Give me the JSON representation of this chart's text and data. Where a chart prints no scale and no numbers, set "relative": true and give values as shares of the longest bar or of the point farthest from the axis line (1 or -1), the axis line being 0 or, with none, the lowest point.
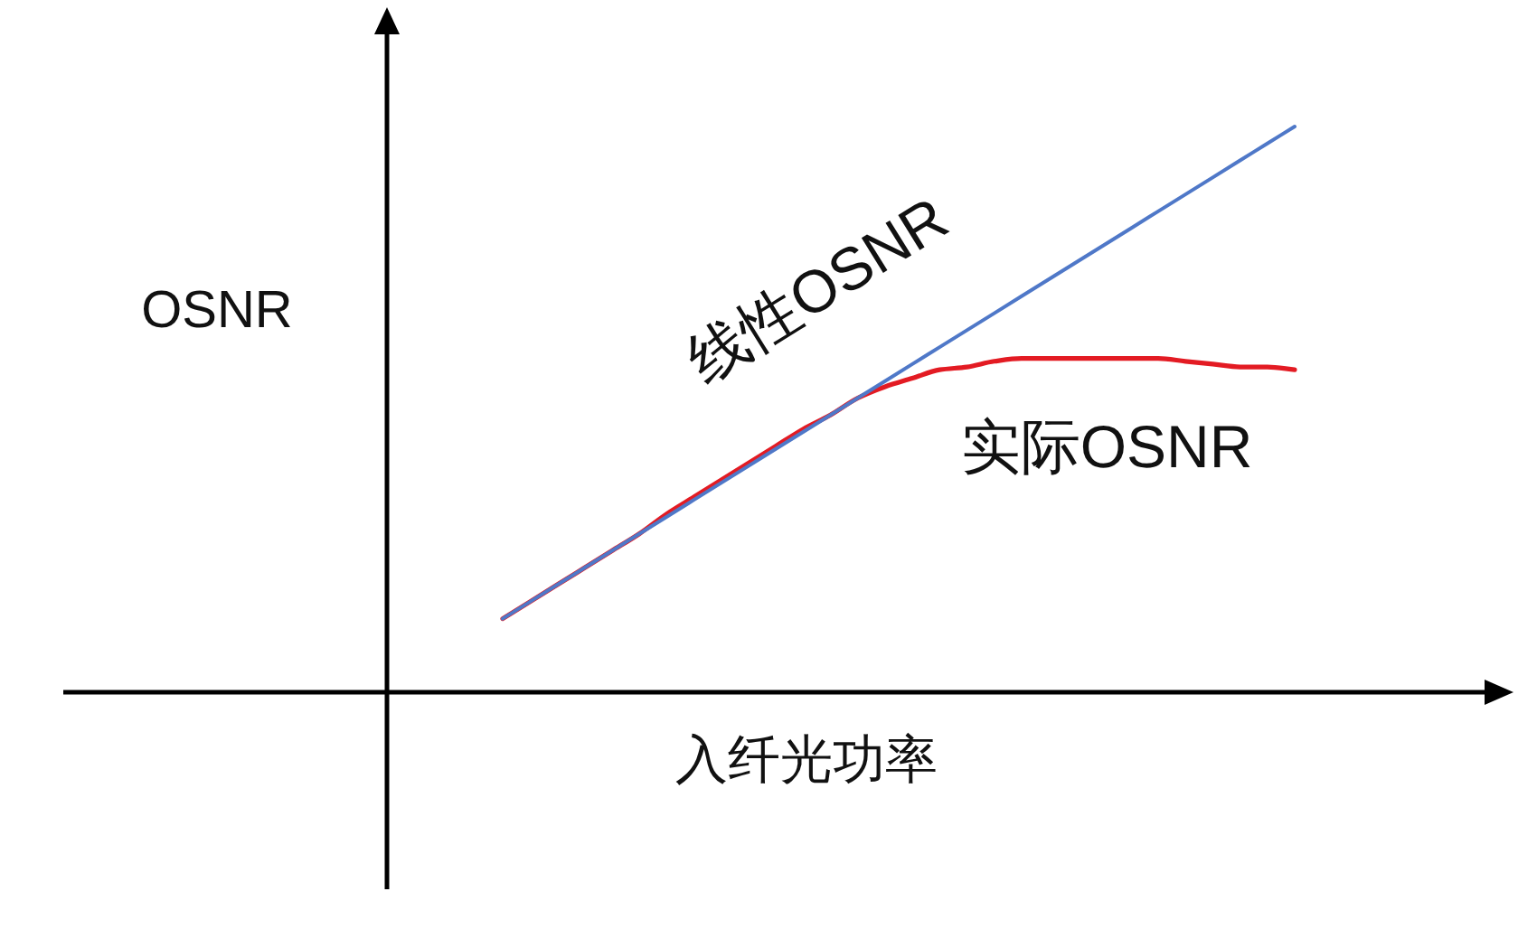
{
  "chart_data": {
    "type": "line",
    "relative": true,
    "xlabel": "入纤光功率",
    "ylabel": "OSNR",
    "categories": [
      null,
      null,
      null,
      null,
      null,
      null,
      null,
      null,
      null,
      null,
      null,
      null,
      null,
      null,
      null,
      null,
      null,
      null,
      null,
      null,
      null,
      null,
      null,
      null,
      null,
      null,
      null,
      null,
      null,
      null
    ],
    "series": [
      {
        "name": "线性OSNR",
        "color": "#4f78c8",
        "values": [
          0.13,
          0.16,
          0.19,
          0.22,
          0.25,
          0.28,
          0.31,
          0.34,
          0.37,
          0.4,
          0.43,
          0.46,
          0.49,
          0.52,
          0.55,
          0.58,
          0.61,
          0.64,
          0.67,
          0.7,
          0.73,
          0.76,
          0.79,
          0.82,
          0.85,
          0.88,
          0.91,
          0.94,
          0.97,
          1.0
        ]
      },
      {
        "name": "实际OSNR",
        "color": "#e31b23",
        "values": [
          0.13,
          0.16,
          0.19,
          0.22,
          0.25,
          0.28,
          0.315,
          0.345,
          0.375,
          0.405,
          0.435,
          0.465,
          0.49,
          0.52,
          0.54,
          0.555,
          0.57,
          0.575,
          0.585,
          0.59,
          0.59,
          0.59,
          0.59,
          0.59,
          0.59,
          0.585,
          0.58,
          0.575,
          0.575,
          0.57
        ]
      }
    ]
  }
}
